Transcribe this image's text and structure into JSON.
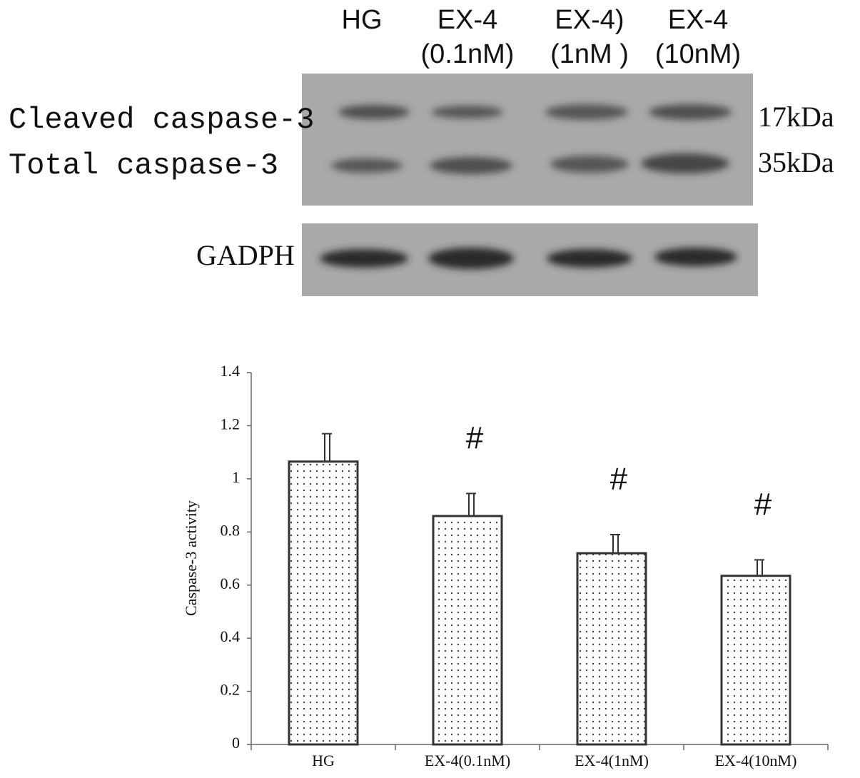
{
  "blot": {
    "lanes": [
      {
        "line1": "HG",
        "line2": null
      },
      {
        "line1": "EX-4",
        "line2": "(0.1nM)"
      },
      {
        "line1": "EX-4)",
        "line2": "(1nM )"
      },
      {
        "line1": "EX-4",
        "line2": "(10nM)"
      }
    ],
    "rows": [
      {
        "label": "Cleaved caspase-3",
        "size": "17kDa"
      },
      {
        "label": "Total caspase-3",
        "size": "35kDa"
      },
      {
        "label": "GADPH",
        "size": null
      }
    ]
  },
  "chart_data": {
    "type": "bar",
    "ylabel": "Caspase-3 activity",
    "categories": [
      "HG",
      "EX-4(0.1nM)",
      "EX-4(1nM)",
      "EX-4(10nM)"
    ],
    "values": [
      1.065,
      0.86,
      0.72,
      0.635
    ],
    "errors": [
      0.105,
      0.085,
      0.07,
      0.06
    ],
    "annotations": [
      null,
      "#",
      "#",
      "#"
    ],
    "color": "#444444",
    "ylim": [
      0,
      1.4
    ],
    "yticks": [
      0,
      0.2,
      0.4,
      0.6,
      0.8,
      1,
      1.2,
      1.4
    ],
    "grid": false
  }
}
